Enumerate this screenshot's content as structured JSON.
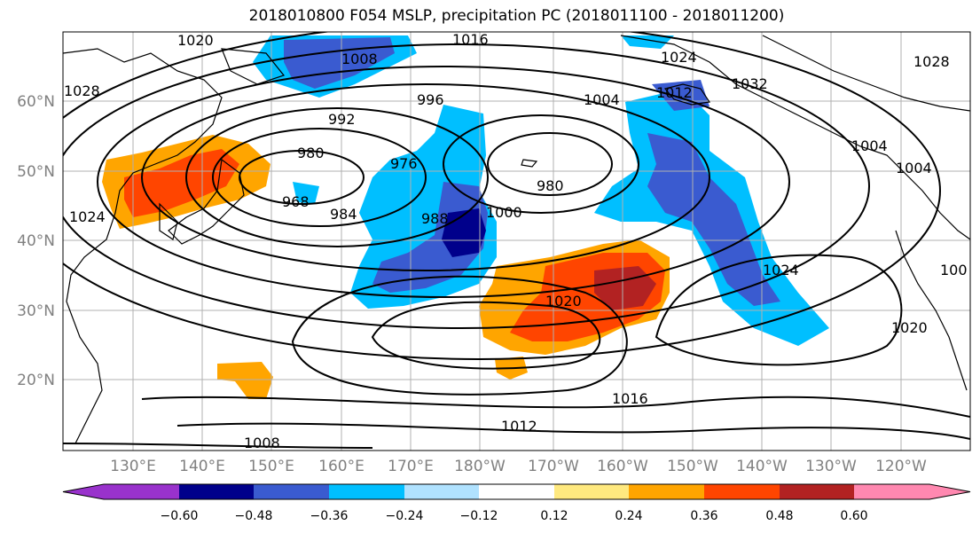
{
  "title": "2018010800 F054 MSLP, precipitation PC (2018011100 - 2018011200)",
  "lat_labels": [
    "60°N",
    "50°N",
    "40°N",
    "30°N",
    "20°N"
  ],
  "lon_labels": [
    "130°E",
    "140°E",
    "150°E",
    "160°E",
    "170°E",
    "180°W",
    "170°W",
    "160°W",
    "150°W",
    "140°W",
    "130°W",
    "120°W"
  ],
  "contour_labels": [
    "1020",
    "1016",
    "1008",
    "1028",
    "1024",
    "1032",
    "996",
    "992",
    "1004",
    "1012",
    "980",
    "976",
    "968",
    "984",
    "988",
    "1000",
    "980",
    "1024",
    "1020",
    "1020",
    "1016",
    "1012",
    "1008",
    "1004",
    "1028",
    "1024",
    "1004",
    "100"
  ],
  "colorbar": {
    "ticks": [
      "−0.60",
      "−0.48",
      "−0.36",
      "−0.24",
      "−0.12",
      "0.12",
      "0.24",
      "0.36",
      "0.48",
      "0.60"
    ],
    "colors": [
      "#9932cc",
      "#00008b",
      "#3a5bd0",
      "#00bfff",
      "#b0e2ff",
      "#ffffff",
      "#ffe97f",
      "#ffa500",
      "#ff4500",
      "#b22222",
      "#ff88b0"
    ]
  }
}
